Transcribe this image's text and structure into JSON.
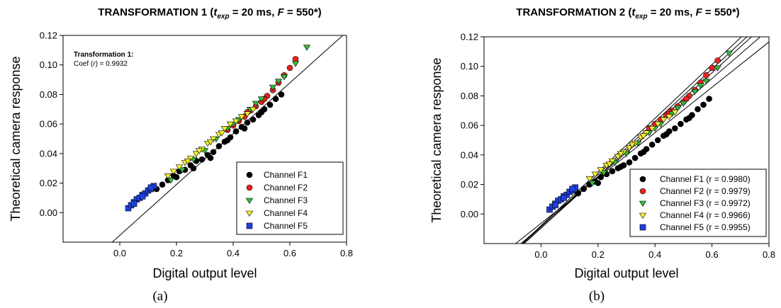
{
  "chart_data": [
    {
      "type": "scatter",
      "panel_label": "(a)",
      "title_main": "TRANSFORMATION 1 (",
      "title_var1": "t",
      "title_var1_sub": "exp",
      "title_mid": " = 20 ms, ",
      "title_var2": "F",
      "title_end": " = 550*)",
      "xlabel": "Digital output level",
      "ylabel": "Theoretical camera response",
      "xlim": [
        -0.2,
        0.8
      ],
      "ylim": [
        -0.02,
        0.12
      ],
      "xticks": [
        "0.0",
        "0.2",
        "0.4",
        "0.6",
        "0.8"
      ],
      "yticks": [
        "0.00",
        "0.02",
        "0.04",
        "0.06",
        "0.08",
        "0.10",
        "0.12"
      ],
      "annotation": {
        "title": "Transformation 1:",
        "line_prefix": "Coef (",
        "line_var": "r",
        "line_suffix": ") = 0.9932"
      },
      "fit_lines": [
        {
          "slope": 0.1721,
          "intercept": -0.0154
        }
      ],
      "series": [
        {
          "name": "Channel F1",
          "color": "#000000",
          "marker": "circle",
          "x": [
            0.13,
            0.15,
            0.17,
            0.19,
            0.21,
            0.23,
            0.25,
            0.27,
            0.29,
            0.31,
            0.33,
            0.35,
            0.37,
            0.39,
            0.41,
            0.43,
            0.45,
            0.47,
            0.49,
            0.51,
            0.53,
            0.55,
            0.57,
            0.2,
            0.26,
            0.32,
            0.38,
            0.44,
            0.5
          ],
          "y": [
            0.016,
            0.019,
            0.022,
            0.025,
            0.028,
            0.029,
            0.032,
            0.035,
            0.036,
            0.039,
            0.041,
            0.045,
            0.048,
            0.051,
            0.055,
            0.058,
            0.061,
            0.063,
            0.066,
            0.07,
            0.073,
            0.077,
            0.08,
            0.024,
            0.03,
            0.037,
            0.049,
            0.057,
            0.068
          ]
        },
        {
          "name": "Channel F2",
          "color": "#e8231f",
          "marker": "circle",
          "x": [
            0.38,
            0.4,
            0.42,
            0.44,
            0.46,
            0.48,
            0.5,
            0.52,
            0.54,
            0.56,
            0.58,
            0.6,
            0.62,
            0.45,
            0.51
          ],
          "y": [
            0.056,
            0.059,
            0.062,
            0.065,
            0.069,
            0.072,
            0.075,
            0.079,
            0.083,
            0.088,
            0.093,
            0.098,
            0.104,
            0.068,
            0.077
          ]
        },
        {
          "name": "Channel F3",
          "color": "#2fbf3a",
          "marker": "tri-down",
          "x": [
            0.18,
            0.22,
            0.26,
            0.3,
            0.34,
            0.38,
            0.42,
            0.46,
            0.5,
            0.54,
            0.58,
            0.62,
            0.66,
            0.4,
            0.48,
            0.56
          ],
          "y": [
            0.022,
            0.029,
            0.036,
            0.042,
            0.05,
            0.057,
            0.063,
            0.07,
            0.077,
            0.085,
            0.092,
            0.101,
            0.112,
            0.06,
            0.074,
            0.089
          ]
        },
        {
          "name": "Channel F4",
          "color": "#f5ee2e",
          "marker": "tri-down",
          "x": [
            0.17,
            0.19,
            0.21,
            0.23,
            0.25,
            0.27,
            0.29,
            0.31,
            0.33,
            0.35,
            0.37,
            0.39,
            0.41,
            0.43,
            0.45,
            0.47,
            0.24,
            0.28,
            0.32,
            0.36
          ],
          "y": [
            0.025,
            0.028,
            0.031,
            0.034,
            0.037,
            0.04,
            0.043,
            0.047,
            0.05,
            0.053,
            0.057,
            0.06,
            0.062,
            0.065,
            0.067,
            0.07,
            0.035,
            0.042,
            0.048,
            0.054
          ]
        },
        {
          "name": "Channel F5",
          "color": "#1f3fe0",
          "marker": "square",
          "x": [
            0.03,
            0.04,
            0.05,
            0.06,
            0.07,
            0.08,
            0.09,
            0.1,
            0.11,
            0.12,
            0.05,
            0.08,
            0.11
          ],
          "y": [
            0.003,
            0.005,
            0.007,
            0.009,
            0.01,
            0.012,
            0.013,
            0.015,
            0.016,
            0.018,
            0.006,
            0.011,
            0.017
          ]
        }
      ]
    },
    {
      "type": "scatter",
      "panel_label": "(b)",
      "title_main": "TRANSFORMATION 2 (",
      "title_var1": "t",
      "title_var1_sub": "exp",
      "title_mid": " = 20 ms, ",
      "title_var2": "F",
      "title_end": " = 550*)",
      "xlabel": "Digital output level",
      "ylabel": "Theoretical camera response",
      "xlim": [
        -0.2,
        0.8
      ],
      "ylim": [
        -0.02,
        0.12
      ],
      "xticks": [
        "0.0",
        "0.2",
        "0.4",
        "0.6",
        "0.8"
      ],
      "yticks": [
        "0.00",
        "0.02",
        "0.04",
        "0.06",
        "0.08",
        "0.10",
        "0.12"
      ],
      "fit_lines": [
        {
          "slope": 0.1818,
          "intercept": -0.0079
        },
        {
          "slope": 0.1781,
          "intercept": -0.0087
        },
        {
          "slope": 0.1754,
          "intercept": -0.0096
        },
        {
          "slope": 0.1667,
          "intercept": -0.0083
        },
        {
          "slope": 0.1535,
          "intercept": -0.0063
        }
      ],
      "series": [
        {
          "name": "Channel F1 (r = 0.9980)",
          "color": "#000000",
          "marker": "circle",
          "x": [
            0.13,
            0.15,
            0.17,
            0.19,
            0.21,
            0.23,
            0.25,
            0.27,
            0.29,
            0.31,
            0.33,
            0.35,
            0.37,
            0.39,
            0.41,
            0.43,
            0.45,
            0.47,
            0.49,
            0.51,
            0.53,
            0.55,
            0.57,
            0.59,
            0.2,
            0.28,
            0.36,
            0.44,
            0.52
          ],
          "y": [
            0.014,
            0.017,
            0.02,
            0.022,
            0.025,
            0.027,
            0.029,
            0.031,
            0.033,
            0.035,
            0.038,
            0.041,
            0.044,
            0.047,
            0.05,
            0.053,
            0.056,
            0.058,
            0.061,
            0.064,
            0.067,
            0.071,
            0.074,
            0.078,
            0.021,
            0.032,
            0.042,
            0.054,
            0.065
          ]
        },
        {
          "name": "Channel F2 (r = 0.9979)",
          "color": "#e8231f",
          "marker": "circle",
          "x": [
            0.38,
            0.4,
            0.42,
            0.44,
            0.46,
            0.48,
            0.5,
            0.52,
            0.54,
            0.56,
            0.58,
            0.6,
            0.62,
            0.45,
            0.51
          ],
          "y": [
            0.058,
            0.061,
            0.064,
            0.067,
            0.07,
            0.073,
            0.076,
            0.08,
            0.084,
            0.089,
            0.094,
            0.099,
            0.104,
            0.069,
            0.078
          ]
        },
        {
          "name": "Channel F3 (r = 0.9972)",
          "color": "#2fbf3a",
          "marker": "tri-down",
          "x": [
            0.18,
            0.22,
            0.26,
            0.3,
            0.34,
            0.38,
            0.42,
            0.46,
            0.5,
            0.54,
            0.58,
            0.62,
            0.66,
            0.4,
            0.48,
            0.56
          ],
          "y": [
            0.021,
            0.028,
            0.035,
            0.041,
            0.048,
            0.055,
            0.061,
            0.068,
            0.075,
            0.083,
            0.09,
            0.099,
            0.109,
            0.058,
            0.072,
            0.087
          ]
        },
        {
          "name": "Channel F4 (r = 0.9966)",
          "color": "#f5ee2e",
          "marker": "tri-down",
          "x": [
            0.17,
            0.19,
            0.21,
            0.23,
            0.25,
            0.27,
            0.29,
            0.31,
            0.33,
            0.35,
            0.37,
            0.39,
            0.41,
            0.43,
            0.45,
            0.47,
            0.24,
            0.28,
            0.32,
            0.36
          ],
          "y": [
            0.024,
            0.027,
            0.03,
            0.033,
            0.036,
            0.039,
            0.042,
            0.045,
            0.048,
            0.052,
            0.055,
            0.058,
            0.061,
            0.064,
            0.066,
            0.069,
            0.034,
            0.041,
            0.047,
            0.053
          ]
        },
        {
          "name": "Channel F5 (r = 0.9955)",
          "color": "#1f3fe0",
          "marker": "square",
          "x": [
            0.03,
            0.04,
            0.05,
            0.06,
            0.07,
            0.08,
            0.09,
            0.1,
            0.11,
            0.12,
            0.05,
            0.08,
            0.11
          ],
          "y": [
            0.003,
            0.005,
            0.007,
            0.009,
            0.01,
            0.012,
            0.013,
            0.015,
            0.016,
            0.018,
            0.006,
            0.011,
            0.017
          ]
        }
      ]
    }
  ]
}
